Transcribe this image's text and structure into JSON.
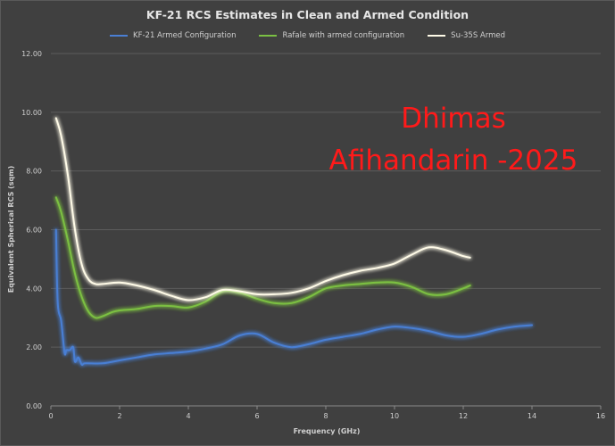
{
  "chart_data": {
    "type": "line",
    "title": "KF-21 RCS Estimates in Clean and Armed Condition",
    "xlabel": "Frequency  (GHz)",
    "ylabel": "Equivalent Spherical RCS (sqm)",
    "xlim": [
      0,
      16
    ],
    "ylim": [
      0,
      12
    ],
    "x_ticks": [
      "0",
      "2",
      "4",
      "6",
      "8",
      "10",
      "12",
      "14",
      "16"
    ],
    "y_ticks": [
      "0.00",
      "2.00",
      "4.00",
      "6.00",
      "8.00",
      "10.00",
      "12.00"
    ],
    "grid": true,
    "legend_position": "top",
    "watermark": [
      "Dhimas",
      "Afihandarin -2025"
    ],
    "series": [
      {
        "name": "KF-21 Armed Configuration",
        "color": "#4a7fd4",
        "x": [
          0.15,
          0.2,
          0.3,
          0.4,
          0.45,
          0.55,
          0.65,
          0.7,
          0.8,
          0.9,
          1.0,
          1.5,
          2.0,
          2.5,
          3.0,
          3.5,
          4.0,
          4.5,
          5.0,
          5.5,
          6.0,
          6.5,
          7.0,
          7.5,
          8.0,
          8.5,
          9.0,
          9.5,
          10.0,
          10.5,
          11.0,
          11.5,
          12.0,
          12.5,
          13.0,
          13.5,
          14.0
        ],
        "y": [
          6.0,
          3.5,
          2.9,
          1.8,
          1.9,
          1.9,
          2.0,
          1.5,
          1.65,
          1.4,
          1.45,
          1.45,
          1.55,
          1.65,
          1.75,
          1.8,
          1.85,
          1.95,
          2.1,
          2.4,
          2.45,
          2.15,
          2.0,
          2.1,
          2.25,
          2.35,
          2.45,
          2.6,
          2.7,
          2.65,
          2.55,
          2.4,
          2.35,
          2.45,
          2.6,
          2.7,
          2.75
        ]
      },
      {
        "name": "Rafale with armed configuration",
        "color": "#7bc043",
        "x": [
          0.15,
          0.3,
          0.5,
          0.7,
          0.9,
          1.1,
          1.3,
          1.5,
          1.8,
          2.0,
          2.5,
          3.0,
          3.5,
          4.0,
          4.5,
          5.0,
          5.5,
          6.0,
          6.5,
          7.0,
          7.5,
          8.0,
          8.5,
          9.0,
          9.5,
          10.0,
          10.5,
          11.0,
          11.5,
          12.0,
          12.2
        ],
        "y": [
          7.1,
          6.6,
          5.6,
          4.5,
          3.7,
          3.2,
          3.0,
          3.05,
          3.2,
          3.25,
          3.3,
          3.4,
          3.4,
          3.35,
          3.55,
          3.9,
          3.85,
          3.65,
          3.5,
          3.5,
          3.7,
          4.0,
          4.1,
          4.15,
          4.2,
          4.2,
          4.05,
          3.8,
          3.8,
          4.0,
          4.1
        ]
      },
      {
        "name": "Su-35S Armed",
        "color": "#fffbe8",
        "x": [
          0.15,
          0.3,
          0.5,
          0.7,
          0.9,
          1.1,
          1.3,
          1.5,
          2.0,
          2.5,
          3.0,
          3.5,
          4.0,
          4.5,
          5.0,
          5.5,
          6.0,
          6.5,
          7.0,
          7.5,
          8.0,
          8.5,
          9.0,
          9.5,
          10.0,
          10.5,
          11.0,
          11.5,
          12.0,
          12.2
        ],
        "y": [
          9.8,
          9.2,
          7.8,
          6.0,
          4.8,
          4.3,
          4.15,
          4.15,
          4.2,
          4.1,
          3.95,
          3.75,
          3.6,
          3.7,
          3.95,
          3.9,
          3.8,
          3.8,
          3.85,
          4.0,
          4.25,
          4.45,
          4.6,
          4.7,
          4.85,
          5.15,
          5.4,
          5.3,
          5.1,
          5.05
        ]
      }
    ]
  }
}
